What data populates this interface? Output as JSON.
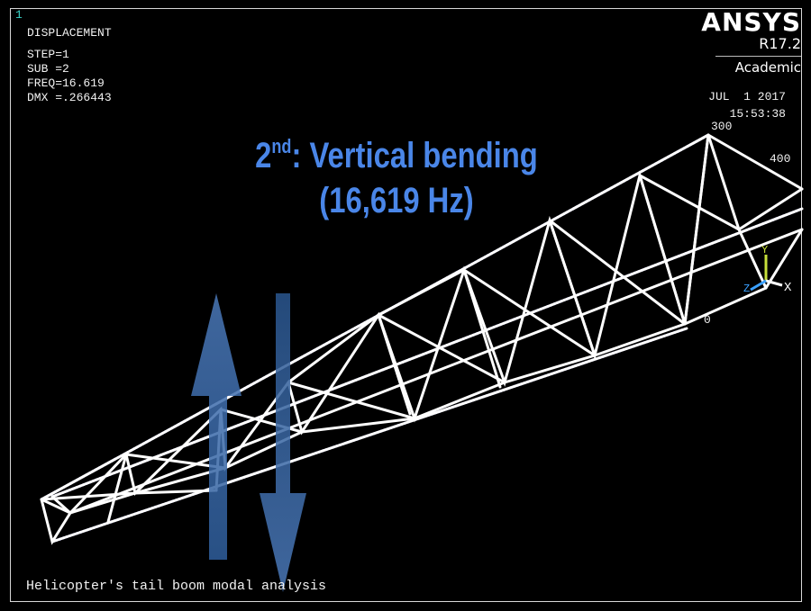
{
  "window_number": "1",
  "info": {
    "mode": "DISPLACEMENT",
    "step": "STEP=1",
    "sub": "SUB =2",
    "freq": "FREQ=16.619",
    "dmx": "DMX =.266443"
  },
  "brand": {
    "name": "ANSYS",
    "version": "R17.2",
    "edition": "Academic"
  },
  "timestamp": {
    "date": "JUL  1 2017",
    "time": "15:53:38"
  },
  "headline": {
    "mode_number": "2",
    "mode_suffix": "nd",
    "mode_label": ": Vertical bending",
    "frequency": "(16,619 Hz)"
  },
  "node_labels": {
    "n300": "300",
    "n400": "400",
    "n0": "0"
  },
  "triad": {
    "x": "X",
    "y": "Y",
    "z": "Z"
  },
  "caption": "Helicopter's tail boom modal analysis",
  "colors": {
    "background": "#000000",
    "headline": "#4a86e8",
    "arrow": "#3d6fb0",
    "structure": "#ffffff",
    "deformed_edge": "#7e7eff",
    "window_number": "#39d4c8",
    "triad_y": "#c6e03a",
    "triad_z": "#3aa0ff"
  }
}
